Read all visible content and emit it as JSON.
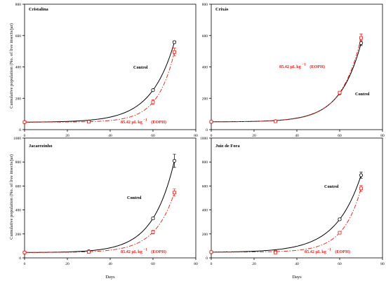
{
  "colors": {
    "control": "#000000",
    "eoph": "#e0201b"
  },
  "labels": {
    "ylabel": "Cumulative population (No. of live insects/jar)",
    "xlabel": "Days",
    "control": "Control",
    "eoph_value": "85.42 μL kg",
    "eoph_exp": "−1",
    "eoph_tag": "(EOPH)"
  },
  "chart_data": [
    {
      "type": "line",
      "title": "Cristalina",
      "xlim": [
        0,
        80
      ],
      "ylim": [
        0,
        800
      ],
      "xticks": [
        0,
        20,
        40,
        60,
        80
      ],
      "yticks": [
        0,
        200,
        400,
        600,
        800
      ],
      "series": [
        {
          "name": "Control",
          "style": "solid",
          "marker": "circle",
          "points": [
            {
              "x": 0,
              "y": 48
            },
            {
              "x": 30,
              "y": 52
            },
            {
              "x": 60,
              "y": 252
            },
            {
              "x": 70,
              "y": 558
            }
          ],
          "errors": [
            0,
            0,
            5,
            8
          ]
        },
        {
          "name": "85.42 μL kg−1 (EOPH)",
          "style": "dashed",
          "marker": "square",
          "points": [
            {
              "x": 0,
              "y": 48
            },
            {
              "x": 30,
              "y": 50
            },
            {
              "x": 60,
              "y": 175
            },
            {
              "x": 70,
              "y": 495
            }
          ],
          "errors": [
            0,
            0,
            15,
            25
          ]
        }
      ]
    },
    {
      "type": "line",
      "title": "Crixás",
      "xlim": [
        0,
        80
      ],
      "ylim": [
        0,
        800
      ],
      "xticks": [
        0,
        20,
        40,
        60,
        80
      ],
      "yticks": [
        0,
        200,
        400,
        600,
        800
      ],
      "series": [
        {
          "name": "Control",
          "style": "solid",
          "marker": "circle",
          "points": [
            {
              "x": 0,
              "y": 50
            },
            {
              "x": 30,
              "y": 54
            },
            {
              "x": 60,
              "y": 232
            },
            {
              "x": 70,
              "y": 552
            }
          ],
          "errors": [
            0,
            0,
            5,
            15
          ]
        },
        {
          "name": "85.42 μL kg−1 (EOPH)",
          "style": "dashed",
          "marker": "square",
          "points": [
            {
              "x": 0,
              "y": 50
            },
            {
              "x": 30,
              "y": 53
            },
            {
              "x": 60,
              "y": 236
            },
            {
              "x": 70,
              "y": 585
            }
          ],
          "errors": [
            0,
            0,
            5,
            25
          ]
        }
      ]
    },
    {
      "type": "line",
      "title": "Jacarezinho",
      "xlim": [
        0,
        80
      ],
      "ylim": [
        0,
        1000
      ],
      "xticks": [
        0,
        20,
        40,
        60,
        80
      ],
      "yticks": [
        0,
        200,
        400,
        600,
        800,
        1000
      ],
      "series": [
        {
          "name": "Control",
          "style": "solid",
          "marker": "circle",
          "points": [
            {
              "x": 0,
              "y": 45
            },
            {
              "x": 30,
              "y": 55
            },
            {
              "x": 60,
              "y": 330
            },
            {
              "x": 70,
              "y": 810
            }
          ],
          "errors": [
            0,
            0,
            10,
            55
          ]
        },
        {
          "name": "85.42 μL kg−1 (EOPH)",
          "style": "dashed",
          "marker": "square",
          "points": [
            {
              "x": 0,
              "y": 45
            },
            {
              "x": 30,
              "y": 50
            },
            {
              "x": 60,
              "y": 215
            },
            {
              "x": 70,
              "y": 545
            }
          ],
          "errors": [
            0,
            0,
            15,
            30
          ]
        }
      ]
    },
    {
      "type": "line",
      "title": "Juiz de Fora",
      "xlim": [
        0,
        80
      ],
      "ylim": [
        0,
        1000
      ],
      "xticks": [
        0,
        20,
        40,
        60,
        80
      ],
      "yticks": [
        0,
        200,
        400,
        600,
        800,
        1000
      ],
      "series": [
        {
          "name": "Control",
          "style": "solid",
          "marker": "circle",
          "points": [
            {
              "x": 0,
              "y": 48
            },
            {
              "x": 30,
              "y": 52
            },
            {
              "x": 60,
              "y": 322
            },
            {
              "x": 70,
              "y": 690
            }
          ],
          "errors": [
            0,
            0,
            10,
            25
          ]
        },
        {
          "name": "85.42 μL kg−1 (EOPH)",
          "style": "dashed",
          "marker": "square",
          "points": [
            {
              "x": 0,
              "y": 48
            },
            {
              "x": 30,
              "y": 45
            },
            {
              "x": 60,
              "y": 210
            },
            {
              "x": 70,
              "y": 580
            }
          ],
          "errors": [
            0,
            0,
            10,
            25
          ]
        }
      ]
    }
  ]
}
